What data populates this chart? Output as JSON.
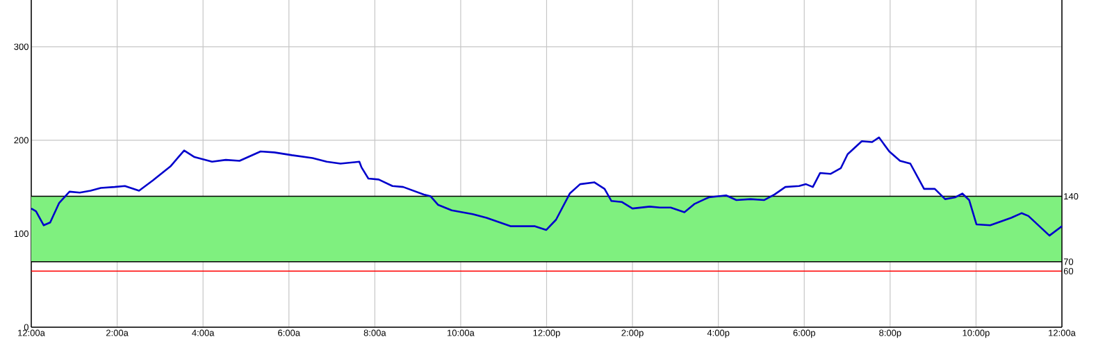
{
  "chart_data": {
    "type": "line",
    "x": [
      0,
      0.11,
      0.29,
      0.44,
      0.65,
      0.89,
      1.13,
      1.38,
      1.62,
      1.94,
      2.18,
      2.51,
      2.83,
      3.24,
      3.56,
      3.8,
      4.21,
      4.53,
      4.85,
      5.34,
      5.66,
      6.07,
      6.55,
      6.88,
      7.2,
      7.64,
      7.69,
      7.85,
      8.09,
      8.41,
      8.66,
      9.14,
      9.3,
      9.47,
      9.79,
      10.28,
      10.6,
      11.17,
      11.73,
      11.99,
      12.22,
      12.54,
      12.78,
      13.11,
      13.35,
      13.51,
      13.75,
      14.0,
      14.4,
      14.64,
      14.89,
      15.21,
      15.45,
      15.78,
      16.18,
      16.42,
      16.75,
      17.07,
      17.31,
      17.56,
      17.88,
      18.04,
      18.2,
      18.37,
      18.61,
      18.85,
      19.01,
      19.34,
      19.58,
      19.74,
      19.98,
      20.23,
      20.47,
      20.79,
      21.04,
      21.28,
      21.52,
      21.68,
      21.84,
      22.01,
      22.33,
      22.57,
      22.82,
      23.06,
      23.22,
      23.71,
      24
    ],
    "series": [
      {
        "color": "#0000cc",
        "values": [
          127,
          124,
          109,
          112,
          133,
          145,
          144,
          146,
          149,
          150,
          151,
          146,
          157,
          172,
          189,
          182,
          177,
          179,
          178,
          188,
          187,
          184,
          181,
          177,
          175,
          177,
          171,
          159,
          158,
          151,
          150,
          142,
          140,
          131,
          125,
          121,
          117,
          108,
          108,
          104,
          115,
          143,
          153,
          155,
          148,
          135,
          134,
          127,
          129,
          128,
          128,
          123,
          132,
          139,
          141,
          136,
          137,
          136,
          142,
          150,
          151,
          153,
          150,
          165,
          164,
          170,
          185,
          199,
          198,
          203,
          188,
          178,
          175,
          148,
          148,
          137,
          139,
          143,
          136,
          110,
          109,
          113,
          117,
          122,
          119,
          98,
          108
        ]
      }
    ],
    "xlim": [
      0,
      24
    ],
    "xticks": [
      {
        "value": 0,
        "label": "12:00a"
      },
      {
        "value": 2,
        "label": "2:00a"
      },
      {
        "value": 4,
        "label": "4:00a"
      },
      {
        "value": 6,
        "label": "6:00a"
      },
      {
        "value": 8,
        "label": "8:00a"
      },
      {
        "value": 10,
        "label": "10:00a"
      },
      {
        "value": 12,
        "label": "12:00p"
      },
      {
        "value": 14,
        "label": "2:00p"
      },
      {
        "value": 16,
        "label": "4:00p"
      },
      {
        "value": 18,
        "label": "6:00p"
      },
      {
        "value": 20,
        "label": "8:00p"
      },
      {
        "value": 22,
        "label": "10:00p"
      },
      {
        "value": 24,
        "label": "12:00a"
      }
    ],
    "ylim": [
      0,
      350
    ],
    "yticks": [
      0,
      100,
      200,
      300
    ],
    "grid": true,
    "bands": [
      {
        "axis": "y",
        "from": 70,
        "to": 140,
        "color": "#7ff07f"
      }
    ],
    "ref_lines": [
      {
        "axis": "y",
        "value": 140,
        "label": "140",
        "color": "#000000"
      },
      {
        "axis": "y",
        "value": 70,
        "label": "70",
        "color": "#000000"
      },
      {
        "axis": "y",
        "value": 60,
        "label": "60",
        "color": "#ff0000"
      }
    ]
  }
}
